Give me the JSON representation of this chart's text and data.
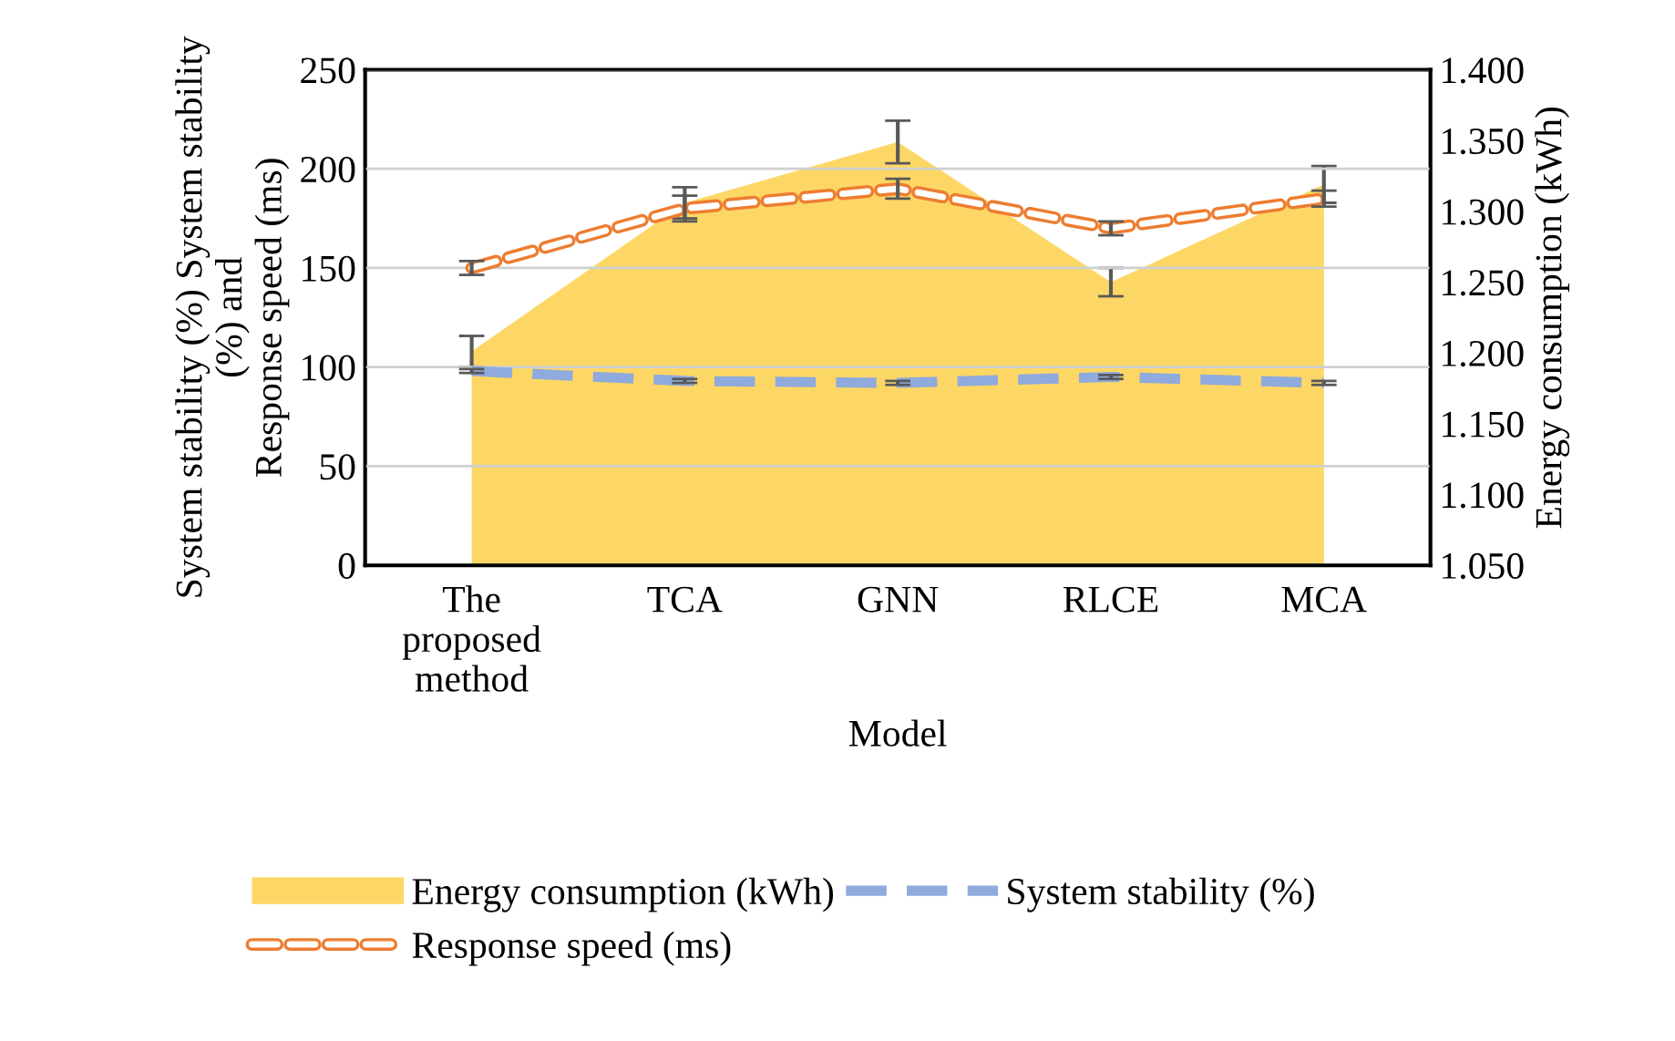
{
  "chart_data": {
    "type": "line",
    "categories": [
      "The\nproposed\nmethod",
      "TCA",
      "GNN",
      "RLCE",
      "MCA"
    ],
    "xlabel": "Model",
    "ylabel": "System stability (%) System stability\n(%) and\nResponse speed (ms)",
    "y2label": "Energy consumption (kWh)",
    "series": [
      {
        "name": "Energy consumption (kWh)",
        "type": "area",
        "axis": "y2",
        "color": "#fdd766",
        "values": [
          1.201,
          1.306,
          1.349,
          1.25,
          1.319
        ],
        "errors": [
          0.011,
          0.011,
          0.015,
          0.01,
          0.013
        ]
      },
      {
        "name": "System stability (%)",
        "line_style": "dashed",
        "color": "#8faadc",
        "values": [
          98,
          93,
          92,
          95,
          92
        ],
        "errors": [
          1,
          1,
          1,
          1,
          1
        ]
      },
      {
        "name": "Response speed (ms)",
        "line_style": "dashed",
        "color": "#ed7d31",
        "values": [
          150,
          180,
          190,
          170,
          185
        ],
        "errors": [
          3.5,
          6.5,
          5,
          3.5,
          4
        ]
      }
    ],
    "ylim": [
      0,
      250
    ],
    "yticks": [
      0,
      50,
      100,
      150,
      200,
      250
    ],
    "y2lim": [
      1.05,
      1.4
    ],
    "y2ticks": [
      {
        "value": 1.05,
        "label": "1.050"
      },
      {
        "value": 1.1,
        "label": "1.100"
      },
      {
        "value": 1.15,
        "label": "1.150"
      },
      {
        "value": 1.2,
        "label": "1.200"
      },
      {
        "value": 1.25,
        "label": "1.250"
      },
      {
        "value": 1.3,
        "label": "1.300"
      },
      {
        "value": 1.35,
        "label": "1.350"
      },
      {
        "value": 1.4,
        "label": "1.400"
      }
    ],
    "grid": "y",
    "legend": "bottom"
  }
}
